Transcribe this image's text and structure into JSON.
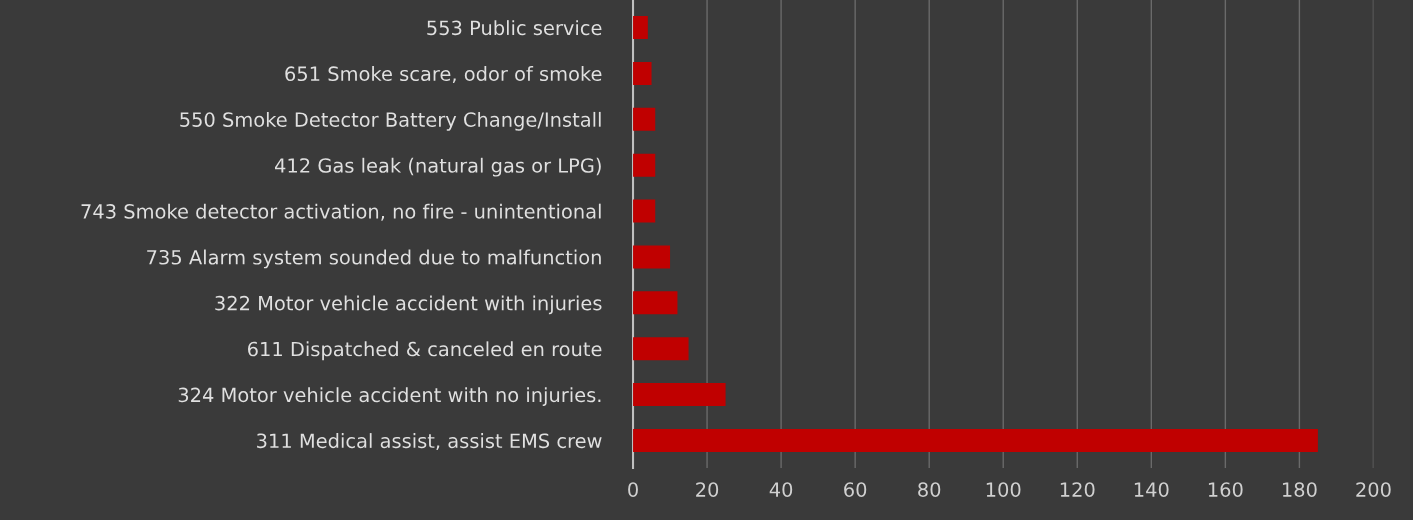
{
  "chart_data": {
    "type": "bar",
    "orientation": "horizontal",
    "categories": [
      "553 Public service",
      "651 Smoke scare, odor of smoke",
      "550 Smoke Detector Battery Change/Install",
      "412 Gas leak (natural gas or LPG)",
      "743 Smoke detector activation, no fire - unintentional",
      "735 Alarm system sounded due to malfunction",
      "322 Motor vehicle accident with injuries",
      "611 Dispatched & canceled en route",
      "324 Motor vehicle accident with no injuries.",
      "311 Medical assist, assist EMS crew"
    ],
    "values": [
      4,
      5,
      6,
      6,
      6,
      10,
      12,
      15,
      25,
      185
    ],
    "color": "#c00000",
    "xlim": [
      0,
      200
    ],
    "xticks": [
      0,
      20,
      40,
      60,
      80,
      100,
      120,
      140,
      160,
      180,
      200
    ],
    "grid": "x"
  }
}
